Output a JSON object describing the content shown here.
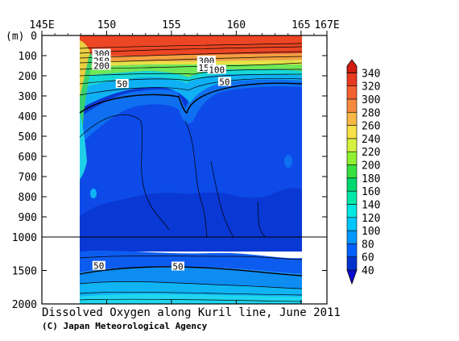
{
  "chart_data": {
    "type": "heatmap",
    "title": "Dissolved Oxygen along Kuril line, June 2011",
    "credit": "(C) Japan Meteorological Agency",
    "x_axis": {
      "range": [
        145,
        167
      ],
      "ticks": [
        {
          "value": 145,
          "label": "145E"
        },
        {
          "value": 150,
          "label": "150"
        },
        {
          "value": 155,
          "label": "155"
        },
        {
          "value": 160,
          "label": "160"
        },
        {
          "value": 165,
          "label": "165"
        },
        {
          "value": 167,
          "label": "167E"
        }
      ]
    },
    "y_axis": {
      "unit_label": "(m)",
      "upper_segment": {
        "range": [
          0,
          1000
        ],
        "ticks": [
          0,
          100,
          200,
          300,
          400,
          500,
          600,
          700,
          800,
          900,
          1000
        ]
      },
      "lower_segment": {
        "range": [
          1000,
          2000
        ],
        "ticks": [
          1500,
          2000
        ]
      },
      "tick_labels": [
        "0",
        "100",
        "200",
        "300",
        "400",
        "500",
        "600",
        "700",
        "800",
        "900",
        "1000",
        "1500",
        "2000"
      ]
    },
    "data_extent_lon": [
      148,
      165
    ],
    "colorbar": {
      "levels": [
        40,
        60,
        80,
        100,
        120,
        140,
        160,
        180,
        200,
        220,
        240,
        260,
        280,
        300,
        320,
        340
      ],
      "labels": [
        "40",
        "60",
        "80",
        "100",
        "120",
        "140",
        "160",
        "180",
        "200",
        "220",
        "240",
        "260",
        "280",
        "300",
        "320",
        "340"
      ],
      "colors": [
        "#0033cc",
        "#005fff",
        "#0098ff",
        "#00c6ff",
        "#00e8e0",
        "#00e8a8",
        "#00d870",
        "#38e040",
        "#90f030",
        "#d8f040",
        "#f8e048",
        "#f8b848",
        "#f88a40",
        "#f26030",
        "#e83a20",
        "#d21c10"
      ],
      "below_color": "#0a0ad0"
    },
    "contour_labels": [
      {
        "text": "300",
        "lon": 149.6,
        "depth": 90
      },
      {
        "text": "250",
        "lon": 149.6,
        "depth": 125
      },
      {
        "text": "200",
        "lon": 149.6,
        "depth": 150
      },
      {
        "text": "50",
        "lon": 151.2,
        "depth": 240
      },
      {
        "text": "300",
        "lon": 157.7,
        "depth": 125
      },
      {
        "text": "150",
        "lon": 157.7,
        "depth": 160
      },
      {
        "text": "100",
        "lon": 158.5,
        "depth": 170
      },
      {
        "text": "50",
        "lon": 159.1,
        "depth": 230
      },
      {
        "text": "50",
        "lon": 149.4,
        "depth": 1430
      },
      {
        "text": "50",
        "lon": 155.5,
        "depth": 1440
      }
    ]
  }
}
